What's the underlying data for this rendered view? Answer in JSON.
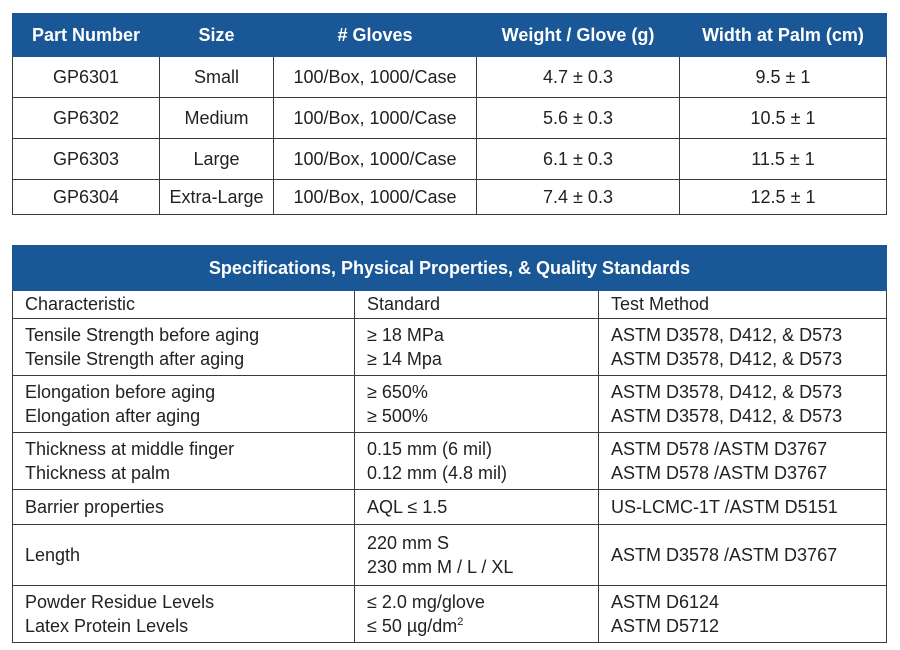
{
  "parts_table": {
    "headers": [
      "Part Number",
      "Size",
      "# Gloves",
      "Weight / Glove (g)",
      "Width at Palm (cm)"
    ],
    "rows": [
      [
        "GP6301",
        "Small",
        "100/Box, 1000/Case",
        "4.7 ± 0.3",
        "9.5 ± 1"
      ],
      [
        "GP6302",
        "Medium",
        "100/Box, 1000/Case",
        "5.6 ± 0.3",
        "10.5 ± 1"
      ],
      [
        "GP6303",
        "Large",
        "100/Box, 1000/Case",
        "6.1 ± 0.3",
        "11.5 ± 1"
      ],
      [
        "GP6304",
        "Extra-Large",
        "100/Box, 1000/Case",
        "7.4 ± 0.3",
        "12.5 ± 1"
      ]
    ]
  },
  "specs_table": {
    "title": "Specifications, Physical Properties, & Quality Standards",
    "headers": [
      "Characteristic",
      "Standard",
      "Test Method"
    ],
    "rows": [
      {
        "characteristic": [
          "Tensile Strength before aging",
          "Tensile Strength after aging"
        ],
        "standard": [
          "≥ 18 MPa",
          "≥ 14 Mpa"
        ],
        "method": [
          "ASTM D3578, D412, & D573",
          "ASTM D3578, D412, & D573"
        ]
      },
      {
        "characteristic": [
          "Elongation before aging",
          "Elongation after aging"
        ],
        "standard": [
          "≥ 650%",
          "≥ 500%"
        ],
        "method": [
          "ASTM D3578, D412, & D573",
          "ASTM D3578, D412, & D573"
        ]
      },
      {
        "characteristic": [
          "Thickness at middle finger",
          "Thickness at palm"
        ],
        "standard": [
          "0.15 mm (6 mil)",
          "0.12 mm (4.8 mil)"
        ],
        "method": [
          "ASTM D578 /ASTM D3767",
          "ASTM D578 /ASTM D3767"
        ]
      },
      {
        "characteristic": [
          "Barrier properties"
        ],
        "standard": [
          "AQL ≤ 1.5"
        ],
        "method": [
          "US-LCMC-1T /ASTM D5151"
        ]
      },
      {
        "characteristic": [
          "Length"
        ],
        "standard": [
          "220 mm S",
          "230 mm M / L / XL"
        ],
        "method": [
          "ASTM D3578 /ASTM D3767"
        ]
      },
      {
        "characteristic": [
          "Powder Residue Levels",
          "Latex Protein Levels"
        ],
        "standard": [
          "≤ 2.0 mg/glove",
          "≤ 50 µg/dm"
        ],
        "standard_superscript": "2",
        "method": [
          "ASTM D6124",
          "ASTM D5712"
        ]
      }
    ]
  }
}
